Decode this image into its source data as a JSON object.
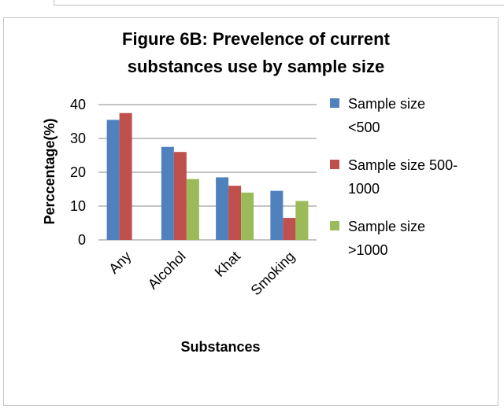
{
  "chart_data": {
    "type": "bar",
    "title_lines": [
      "Figure 6B: Prevelence of current",
      "substances use by sample size"
    ],
    "xlabel": "Substances",
    "ylabel": "Perccentage(%)",
    "ylim": [
      0,
      40
    ],
    "yticks": [
      "0",
      "10",
      "20",
      "30",
      "40"
    ],
    "categories": [
      "Any",
      "Alcohol",
      "Khat",
      "Smoking"
    ],
    "series": [
      {
        "name": "Sample size <500",
        "legend_lines": [
          "Sample size",
          "<500"
        ],
        "color": "#4F81BD",
        "values": [
          35.5,
          27.5,
          18.5,
          14.5
        ]
      },
      {
        "name": "Sample size 500-1000",
        "legend_lines": [
          "Sample size 500-",
          "1000"
        ],
        "color": "#C0504D",
        "values": [
          37.5,
          26,
          16,
          6.5
        ]
      },
      {
        "name": "Sample size >1000",
        "legend_lines": [
          "Sample size",
          ">1000"
        ],
        "color": "#9BBB59",
        "values": [
          null,
          18,
          14,
          11.5
        ]
      }
    ],
    "grid": true,
    "legend_position": "right"
  }
}
